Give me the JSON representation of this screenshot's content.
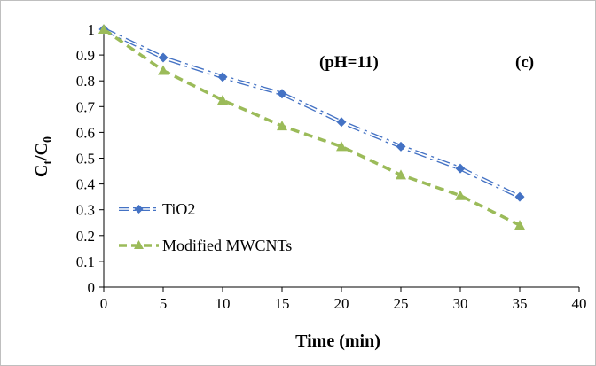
{
  "chart_data": {
    "type": "line",
    "xlabel": "Time (min)",
    "ylabel_main": "C",
    "ylabel_sub1": "t",
    "ylabel_slash": "/C",
    "ylabel_sub2": "0",
    "xlim": [
      0,
      40
    ],
    "ylim": [
      0,
      1
    ],
    "xticks": [
      "0",
      "5",
      "10",
      "15",
      "20",
      "25",
      "30",
      "35",
      "40"
    ],
    "yticks": [
      "0",
      "0.1",
      "0.2",
      "0.3",
      "0.4",
      "0.5",
      "0.6",
      "0.7",
      "0.8",
      "0.9",
      "1"
    ],
    "grid": false,
    "legend_position": "bottom-left",
    "annotations": [
      "(pH=11)",
      "(c)"
    ],
    "series": [
      {
        "name": "TiO2",
        "color": "#4472c4",
        "marker": "diamond",
        "line_style": "dash-dot",
        "x": [
          0,
          5,
          10,
          15,
          20,
          25,
          30,
          35
        ],
        "y": [
          1.0,
          0.89,
          0.815,
          0.75,
          0.64,
          0.545,
          0.46,
          0.35
        ]
      },
      {
        "name": "Modified MWCNTs",
        "color": "#9bbb59",
        "marker": "triangle",
        "line_style": "dashed",
        "x": [
          0,
          5,
          10,
          15,
          20,
          25,
          30,
          35
        ],
        "y": [
          1.0,
          0.84,
          0.725,
          0.625,
          0.545,
          0.435,
          0.355,
          0.24
        ]
      }
    ]
  }
}
